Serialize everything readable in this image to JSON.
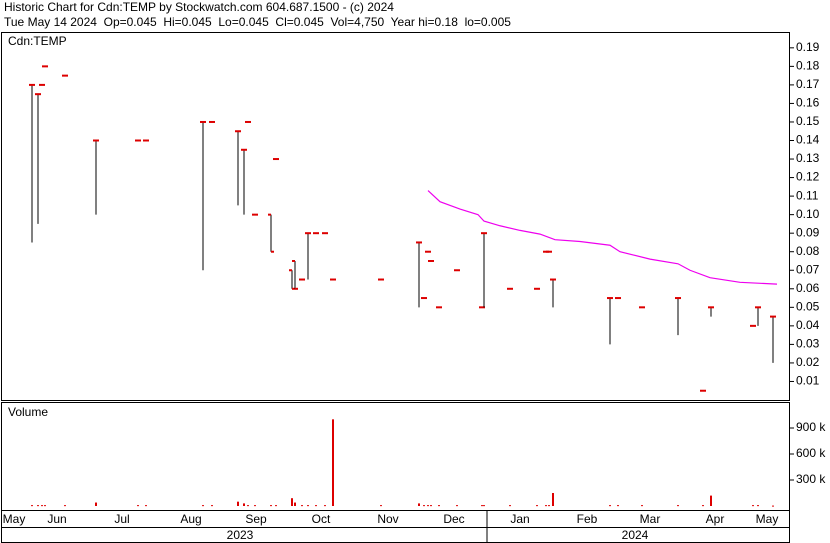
{
  "chart_data": {
    "type": "ohlc",
    "title": "Historic Chart for Cdn:TEMP by Stockwatch.com 604.687.1500 - (c) 2024",
    "subtitle": "Tue May 14 2024  Op=0.045  Hi=0.045  Lo=0.045  Cl=0.045  Vol=4,750  Year hi=0.18  lo=0.005",
    "panel_label": "Cdn:TEMP",
    "x": [
      32,
      38,
      42,
      45,
      65,
      96,
      138,
      146,
      203,
      212,
      238,
      244,
      248,
      255,
      271,
      276,
      292,
      295,
      302,
      308,
      316,
      325,
      333,
      381,
      419,
      424,
      428,
      431,
      439,
      457,
      482,
      484,
      510,
      537,
      546,
      549,
      553,
      610,
      618,
      642,
      678,
      703,
      711,
      753,
      758,
      773
    ],
    "open": [
      0.17,
      0.165,
      0.17,
      0.18,
      0.175,
      0.14,
      0.14,
      0.14,
      0.15,
      0.15,
      0.145,
      0.135,
      0.15,
      0.1,
      0.1,
      0.13,
      0.07,
      0.075,
      0.065,
      0.09,
      0.09,
      0.09,
      0.065,
      0.065,
      0.085,
      0.055,
      0.08,
      0.075,
      0.05,
      0.07,
      0.05,
      0.09,
      0.06,
      0.06,
      0.08,
      0.08,
      0.065,
      0.055,
      0.055,
      0.05,
      0.055,
      0.005,
      0.05,
      0.04,
      0.05,
      0.045
    ],
    "high": [
      0.17,
      0.165,
      0.17,
      0.18,
      0.175,
      0.14,
      0.14,
      0.14,
      0.15,
      0.15,
      0.145,
      0.135,
      0.15,
      0.1,
      0.1,
      0.13,
      0.07,
      0.075,
      0.065,
      0.09,
      0.09,
      0.09,
      0.065,
      0.065,
      0.085,
      0.055,
      0.08,
      0.075,
      0.05,
      0.07,
      0.05,
      0.09,
      0.06,
      0.06,
      0.08,
      0.08,
      0.065,
      0.055,
      0.055,
      0.05,
      0.055,
      0.005,
      0.05,
      0.04,
      0.05,
      0.045
    ],
    "low": [
      0.085,
      0.095,
      0.17,
      0.18,
      0.175,
      0.1,
      0.14,
      0.14,
      0.07,
      0.15,
      0.105,
      0.1,
      0.15,
      0.1,
      0.08,
      0.13,
      0.06,
      0.06,
      0.065,
      0.065,
      0.09,
      0.09,
      0.065,
      0.065,
      0.05,
      0.055,
      0.08,
      0.075,
      0.05,
      0.07,
      0.05,
      0.05,
      0.06,
      0.06,
      0.08,
      0.08,
      0.05,
      0.03,
      0.055,
      0.05,
      0.035,
      0.005,
      0.045,
      0.04,
      0.04,
      0.02
    ],
    "close": [
      0.17,
      0.165,
      0.17,
      0.18,
      0.175,
      0.14,
      0.14,
      0.14,
      0.15,
      0.15,
      0.145,
      0.135,
      0.15,
      0.1,
      0.08,
      0.13,
      0.06,
      0.06,
      0.065,
      0.09,
      0.09,
      0.09,
      0.065,
      0.065,
      0.085,
      0.055,
      0.08,
      0.075,
      0.05,
      0.07,
      0.05,
      0.09,
      0.06,
      0.06,
      0.08,
      0.08,
      0.065,
      0.055,
      0.055,
      0.05,
      0.055,
      0.005,
      0.05,
      0.04,
      0.05,
      0.045
    ],
    "color": "#dd0000",
    "wick_color": "#000000",
    "xlim": [
      2,
      790
    ],
    "ylim": [
      0,
      0.198
    ],
    "yticks": [
      0.01,
      0.02,
      0.03,
      0.04,
      0.05,
      0.06,
      0.07,
      0.08,
      0.09,
      {
        "value": 0.1,
        "label": "0.10"
      },
      0.11,
      0.12,
      0.13,
      0.14,
      0.15,
      0.16,
      0.17,
      0.18,
      0.19
    ],
    "xticks": [
      {
        "value": 14,
        "label": "May"
      },
      {
        "value": 57,
        "label": "Jun"
      },
      {
        "value": 122,
        "label": "Jul"
      },
      {
        "value": 191,
        "label": "Aug"
      },
      {
        "value": 256,
        "label": "Sep"
      },
      {
        "value": 321,
        "label": "Oct"
      },
      {
        "value": 388,
        "label": "Nov"
      },
      {
        "value": 454,
        "label": "Dec"
      },
      {
        "value": 520,
        "label": "Jan"
      },
      {
        "value": 587,
        "label": "Feb"
      },
      {
        "value": 650,
        "label": "Mar"
      },
      {
        "value": 715,
        "label": "Apr"
      },
      {
        "value": 767,
        "label": "May"
      }
    ],
    "year_labels": [
      {
        "value": 240,
        "label": "2023"
      },
      {
        "value": 635,
        "label": "2024"
      }
    ],
    "year_break": 487,
    "moving_average": {
      "color": "#ee00ee",
      "x": [
        428,
        440,
        460,
        478,
        484,
        500,
        520,
        540,
        555,
        580,
        610,
        620,
        650,
        678,
        690,
        710,
        740,
        777
      ],
      "values": [
        0.113,
        0.107,
        0.103,
        0.1,
        0.0965,
        0.094,
        0.0915,
        0.0895,
        0.0865,
        0.0855,
        0.0835,
        0.08,
        0.076,
        0.0735,
        0.07,
        0.066,
        0.0635,
        0.0625
      ]
    },
    "volume": {
      "label": "Volume",
      "color": "#dd0000",
      "values": [
        10000,
        10000,
        10000,
        10000,
        10000,
        40000,
        10000,
        10000,
        10000,
        10000,
        50000,
        30000,
        10000,
        10000,
        10000,
        10000,
        90000,
        40000,
        10000,
        10000,
        10000,
        10000,
        1000000,
        10000,
        30000,
        10000,
        10000,
        10000,
        10000,
        10000,
        10000,
        10000,
        10000,
        10000,
        10000,
        10000,
        150000,
        10000,
        10000,
        10000,
        10000,
        10000,
        120000,
        10000,
        10000,
        4750
      ],
      "ylim": [
        0,
        1200000
      ],
      "yticks": [
        {
          "value": 300000,
          "label": "300 k"
        },
        {
          "value": 600000,
          "label": "600 k"
        },
        {
          "value": 900000,
          "label": "900 k"
        }
      ]
    }
  }
}
